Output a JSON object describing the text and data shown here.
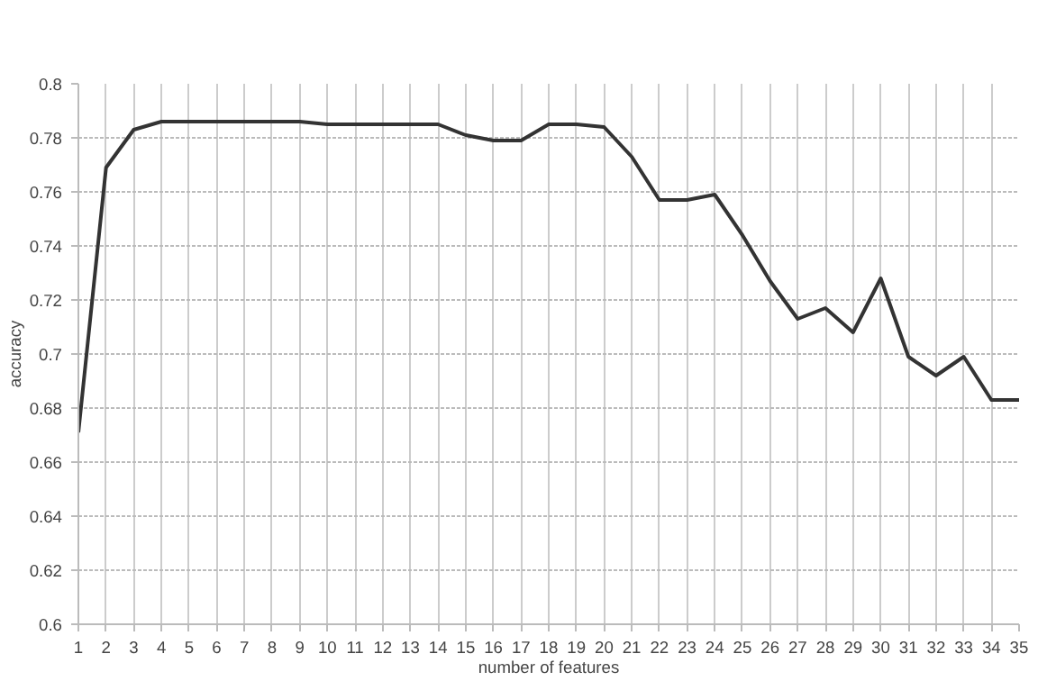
{
  "chart_data": {
    "type": "line",
    "xlabel": "number of features",
    "ylabel": "accuracy",
    "x": [
      1,
      2,
      3,
      4,
      5,
      6,
      7,
      8,
      9,
      10,
      11,
      12,
      13,
      14,
      15,
      16,
      17,
      18,
      19,
      20,
      21,
      22,
      23,
      24,
      25,
      26,
      27,
      28,
      29,
      30,
      31,
      32,
      33,
      34,
      35
    ],
    "series": [
      {
        "color": "#333333",
        "values": [
          0.671,
          0.769,
          0.783,
          0.786,
          0.786,
          0.786,
          0.786,
          0.786,
          0.786,
          0.785,
          0.785,
          0.785,
          0.785,
          0.785,
          0.781,
          0.779,
          0.779,
          0.785,
          0.785,
          0.784,
          0.773,
          0.757,
          0.757,
          0.759,
          0.744,
          0.727,
          0.713,
          0.717,
          0.708,
          0.728,
          0.699,
          0.692,
          0.699,
          0.683,
          0.683
        ]
      }
    ],
    "xlim": [
      1,
      35
    ],
    "ylim": [
      0.6,
      0.8
    ],
    "xticks": [
      1,
      2,
      3,
      4,
      5,
      6,
      7,
      8,
      9,
      10,
      11,
      12,
      13,
      14,
      15,
      16,
      17,
      18,
      19,
      20,
      21,
      22,
      23,
      24,
      25,
      26,
      27,
      28,
      29,
      30,
      31,
      32,
      33,
      34,
      35
    ],
    "yticks": [
      0.6,
      0.62,
      0.64,
      0.66,
      0.68,
      0.7,
      0.72,
      0.74,
      0.76,
      0.78,
      0.8
    ],
    "grid": true,
    "marker": "none",
    "line_style": "solid"
  }
}
